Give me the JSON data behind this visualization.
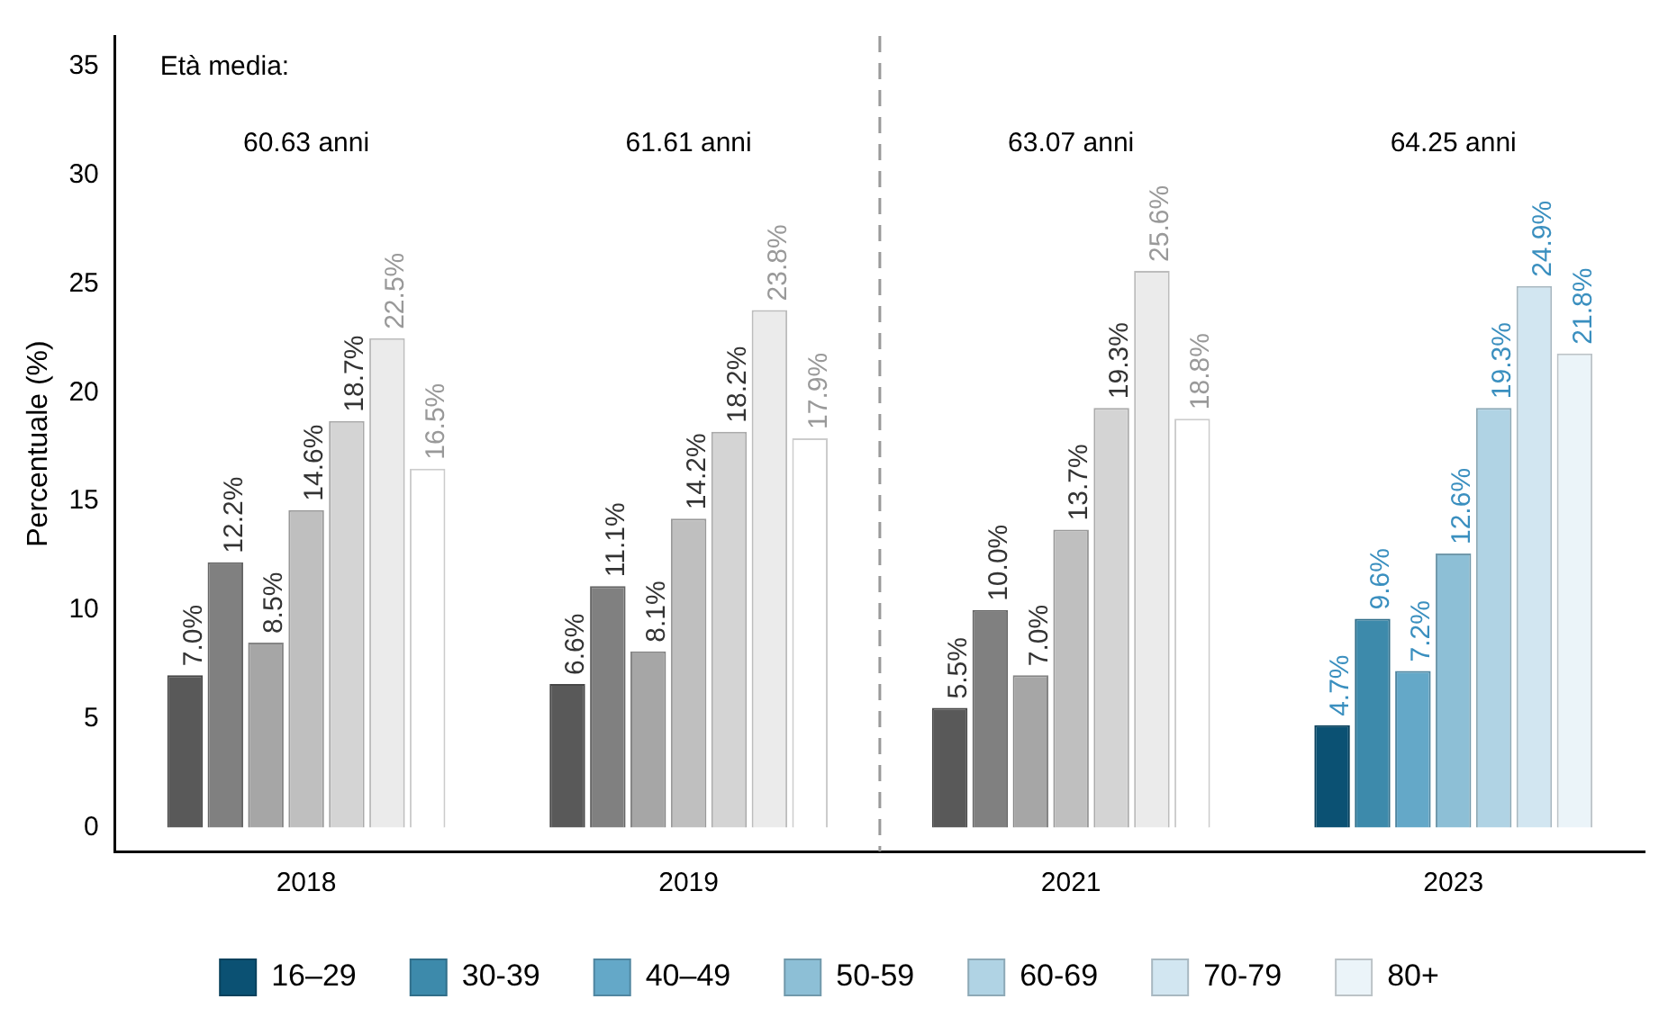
{
  "chart_data": {
    "type": "bar",
    "ylabel": "Percentuale (%)",
    "categories": [
      "2018",
      "2019",
      "2021",
      "2023"
    ],
    "series": [
      {
        "name": "16–29",
        "color": "#0b5173",
        "colors": [
          "#595959",
          "#595959",
          "#595959",
          "#0b5173"
        ],
        "values": [
          7.0,
          6.6,
          5.5,
          4.7
        ],
        "value_labels": [
          "7.0%",
          "6.6%",
          "5.5%",
          "4.7%"
        ]
      },
      {
        "name": "30-39",
        "color": "#3d8aab",
        "colors": [
          "#808080",
          "#808080",
          "#808080",
          "#3d8aab"
        ],
        "values": [
          12.2,
          11.1,
          10.0,
          9.6
        ],
        "value_labels": [
          "12.2%",
          "11.1%",
          "10.0%",
          "9.6%"
        ]
      },
      {
        "name": "40–49",
        "color": "#64a8c8",
        "colors": [
          "#a6a6a6",
          "#a6a6a6",
          "#a6a6a6",
          "#64a8c8"
        ],
        "values": [
          8.5,
          8.1,
          7.0,
          7.2
        ],
        "value_labels": [
          "8.5%",
          "8.1%",
          "7.0%",
          "7.2%"
        ]
      },
      {
        "name": "50-59",
        "color": "#8dbfd6",
        "colors": [
          "#bfbfbf",
          "#bfbfbf",
          "#bfbfbf",
          "#8dbfd6"
        ],
        "values": [
          14.6,
          14.2,
          13.7,
          12.6
        ],
        "value_labels": [
          "14.6%",
          "14.2%",
          "13.7%",
          "12.6%"
        ]
      },
      {
        "name": "60-69",
        "color": "#b0d3e4",
        "colors": [
          "#d4d4d4",
          "#d4d4d4",
          "#d4d4d4",
          "#b0d3e4"
        ],
        "values": [
          18.7,
          18.2,
          19.3,
          19.3
        ],
        "value_labels": [
          "18.7%",
          "18.2%",
          "19.3%",
          "19.3%"
        ]
      },
      {
        "name": "70-79",
        "color": "#d2e6f1",
        "colors": [
          "#ebebeb",
          "#ebebeb",
          "#ebebeb",
          "#d2e6f1"
        ],
        "values": [
          22.5,
          23.8,
          25.6,
          24.9
        ],
        "value_labels": [
          "22.5%",
          "23.8%",
          "25.6%",
          "24.9%"
        ]
      },
      {
        "name": "80+",
        "color": "#ebf4f9",
        "colors": [
          "#ffffff",
          "#ffffff",
          "#ffffff",
          "#ebf4f9"
        ],
        "values": [
          16.5,
          17.9,
          18.8,
          21.8
        ],
        "value_labels": [
          "16.5%",
          "17.9%",
          "18.8%",
          "21.8%"
        ]
      }
    ],
    "ylim": [
      -1.1,
      36.4
    ],
    "yticks": [
      0,
      5,
      10,
      15,
      20,
      25,
      30,
      35
    ],
    "grid": false,
    "legend": "bottom",
    "annotations": [
      "Età media:",
      "60.63 anni",
      "61.61 anni",
      "63.07 anni",
      "64.25 anni"
    ]
  }
}
